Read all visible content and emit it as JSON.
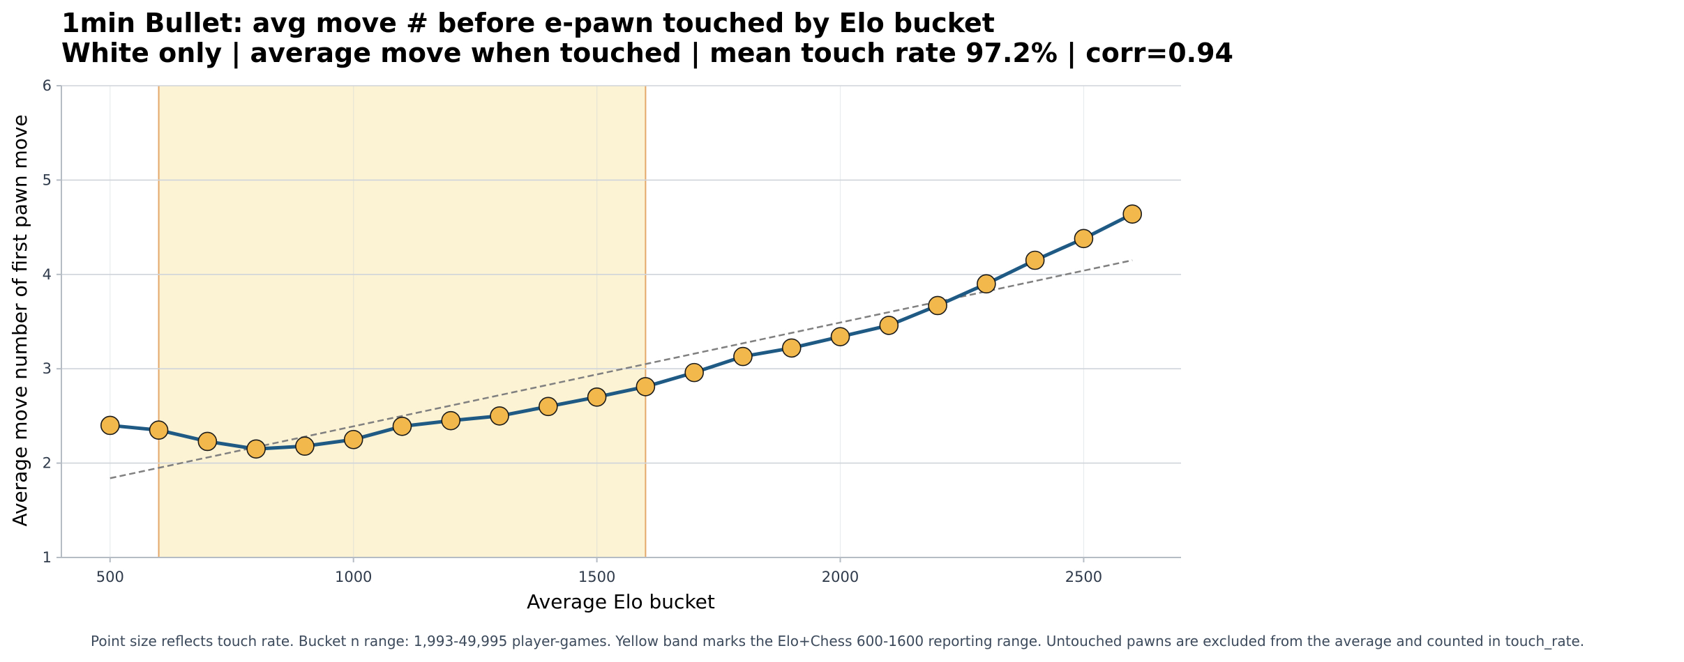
{
  "chart_data": {
    "type": "line",
    "title": "1min Bullet: avg move # before e-pawn touched by Elo bucket",
    "subtitle": "White only | average move when touched | mean touch rate 97.2% | corr=0.94",
    "xlabel": "Average Elo bucket",
    "ylabel": "Average move number of first pawn move",
    "xlim": [
      400,
      2700
    ],
    "ylim": [
      1,
      6
    ],
    "xticks": [
      500,
      1000,
      1500,
      2000,
      2500
    ],
    "yticks": [
      1,
      2,
      3,
      4,
      5,
      6
    ],
    "grid": true,
    "highlight_band": {
      "x_start": 600,
      "x_end": 1600,
      "color": "#fcf2d4",
      "edge_color": "#e3a86a"
    },
    "series": [
      {
        "line_color": "#1f5a85",
        "marker_color": "#f2b84b",
        "x": [
          500,
          600,
          700,
          800,
          900,
          1000,
          1100,
          1200,
          1300,
          1400,
          1500,
          1600,
          1700,
          1800,
          1900,
          2000,
          2100,
          2200,
          2300,
          2400,
          2500,
          2600
        ],
        "y": [
          2.4,
          2.35,
          2.23,
          2.15,
          2.18,
          2.25,
          2.39,
          2.45,
          2.5,
          2.6,
          2.7,
          2.81,
          2.96,
          3.13,
          3.22,
          3.34,
          3.46,
          3.67,
          3.9,
          4.15,
          4.38,
          4.64
        ]
      }
    ],
    "trend_line": {
      "x": [
        500,
        2600
      ],
      "y": [
        1.84,
        4.15
      ],
      "color": "#808080",
      "style": "dashed"
    },
    "caption": "Point size reflects touch rate. Bucket n range: 1,993-49,995 player-games. Yellow band marks the Elo+Chess 600-1600 reporting range. Untouched pawns are excluded from the average and counted in touch_rate."
  }
}
